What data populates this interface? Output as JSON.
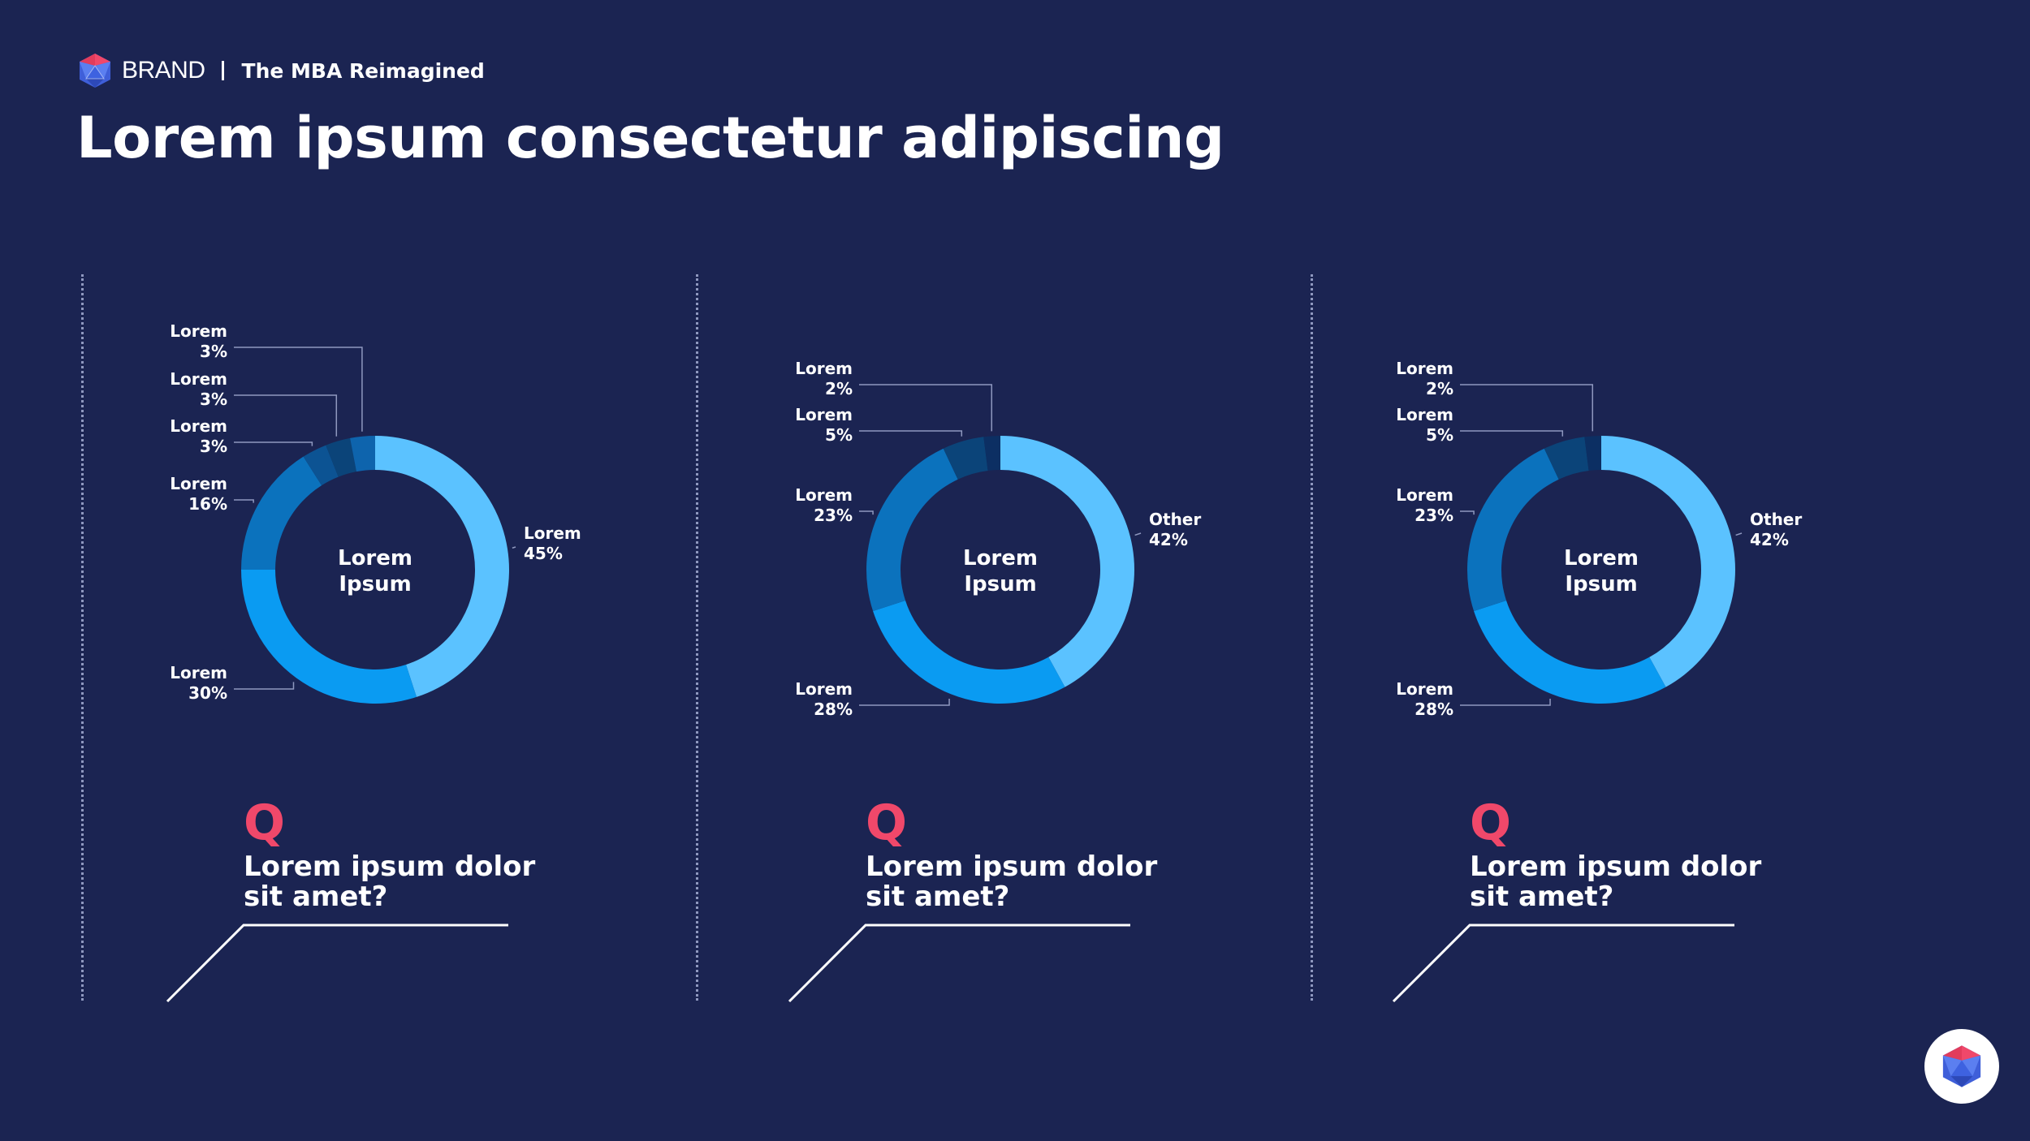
{
  "header": {
    "brand": "BRAND",
    "tagline": "The MBA Reimagined"
  },
  "title": "Lorem ipsum consectetur adipiscing",
  "colors": {
    "background": "#1b2452",
    "accent": "#f0486a",
    "white": "#ffffff"
  },
  "chart_data": [
    {
      "type": "pie",
      "center_label": [
        "Lorem",
        "Ipsum"
      ],
      "slices": [
        {
          "label": "Lorem",
          "value": 45,
          "display": "45%",
          "color": "#5bc2ff"
        },
        {
          "label": "Lorem",
          "value": 30,
          "display": "30%",
          "color": "#0a9bf2"
        },
        {
          "label": "Lorem",
          "value": 16,
          "display": "16%",
          "color": "#0b72bd"
        },
        {
          "label": "Lorem",
          "value": 3,
          "display": "3%",
          "color": "#0c5393"
        },
        {
          "label": "Lorem",
          "value": 3,
          "display": "3%",
          "color": "#0b4479"
        },
        {
          "label": "Lorem",
          "value": 3,
          "display": "3%",
          "color": "#0e64ad"
        }
      ],
      "question": {
        "letter": "Q",
        "text": "Lorem ipsum dolor sit amet?"
      }
    },
    {
      "type": "pie",
      "center_label": [
        "Lorem",
        "Ipsum"
      ],
      "slices": [
        {
          "label": "Other",
          "value": 42,
          "display": "42%",
          "color": "#5bc2ff"
        },
        {
          "label": "Lorem",
          "value": 28,
          "display": "28%",
          "color": "#0a9bf2"
        },
        {
          "label": "Lorem",
          "value": 23,
          "display": "23%",
          "color": "#0b72bd"
        },
        {
          "label": "Lorem",
          "value": 5,
          "display": "5%",
          "color": "#0b4479"
        },
        {
          "label": "Lorem",
          "value": 2,
          "display": "2%",
          "color": "#0c2f63"
        }
      ],
      "question": {
        "letter": "Q",
        "text": "Lorem ipsum dolor sit amet?"
      }
    },
    {
      "type": "pie",
      "center_label": [
        "Lorem",
        "Ipsum"
      ],
      "slices": [
        {
          "label": "Other",
          "value": 42,
          "display": "42%",
          "color": "#5bc2ff"
        },
        {
          "label": "Lorem",
          "value": 28,
          "display": "28%",
          "color": "#0a9bf2"
        },
        {
          "label": "Lorem",
          "value": 23,
          "display": "23%",
          "color": "#0b72bd"
        },
        {
          "label": "Lorem",
          "value": 5,
          "display": "5%",
          "color": "#0b4479"
        },
        {
          "label": "Lorem",
          "value": 2,
          "display": "2%",
          "color": "#0c2f63"
        }
      ],
      "question": {
        "letter": "Q",
        "text": "Lorem ipsum dolor sit amet?"
      }
    }
  ],
  "icons": {
    "logo": "icosahedron-logo-icon",
    "corner": "icosahedron-badge-icon"
  }
}
